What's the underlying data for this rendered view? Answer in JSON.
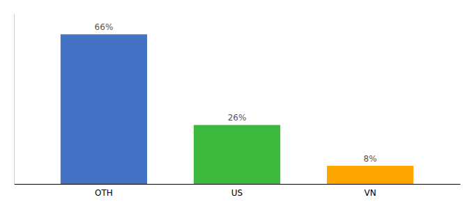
{
  "chart_data": {
    "type": "bar",
    "categories": [
      "OTH",
      "US",
      "VN"
    ],
    "values": [
      66,
      26,
      8
    ],
    "value_labels": [
      "66%",
      "26%",
      "8%"
    ],
    "colors": [
      "#4472C4",
      "#3CB93C",
      "#FFA500"
    ],
    "ylim": [
      0,
      75
    ],
    "data_labels": true,
    "tick_labels": "x",
    "grid": false
  }
}
